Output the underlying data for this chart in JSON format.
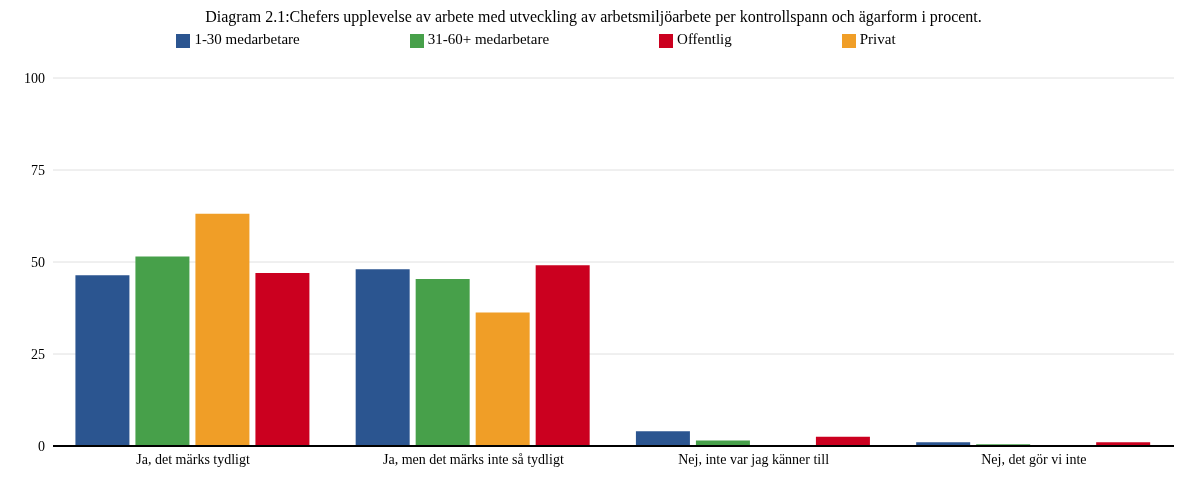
{
  "chart_data": {
    "type": "bar",
    "title": "Diagram 2.1:Chefers upplevelse av arbete med utveckling av arbetsmiljöarbete per kontrollspann och ägarform i procent.",
    "categories": [
      "Ja, det märks tydligt",
      "Ja, men det märks inte så tydligt",
      "Nej, inte var jag känner till",
      "Nej, det gör vi inte"
    ],
    "series": [
      {
        "name": "1-30 medarbetare",
        "color": "#2b5590",
        "values": [
          46.4,
          48.0,
          4.0,
          1.0
        ]
      },
      {
        "name": "31-60+ medarbetare",
        "color": "#47a04a",
        "values": [
          51.5,
          45.4,
          1.5,
          0.5
        ]
      },
      {
        "name": "Privat",
        "color": "#f09e27",
        "values": [
          63.1,
          36.3,
          0,
          0
        ]
      },
      {
        "name": "Offentlig",
        "color": "#cb001f",
        "values": [
          47.0,
          49.1,
          2.5,
          1.0
        ]
      }
    ],
    "ylim": [
      0,
      100
    ],
    "yticks": [
      0,
      25,
      50,
      75,
      100
    ],
    "grid": "y",
    "legend": "top"
  }
}
